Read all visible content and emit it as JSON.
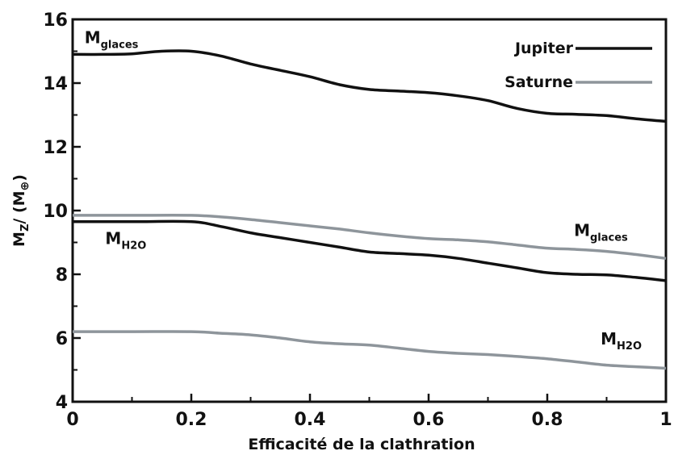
{
  "chart_data": {
    "type": "line",
    "xlabel": "Efficacité de la clathration",
    "ylabel": {
      "main": "M",
      "sub": "Z",
      "rest": "/ (M",
      "earth": "⊕",
      "close": ")"
    },
    "xlim": [
      0,
      1
    ],
    "ylim": [
      4,
      16
    ],
    "x_ticks": [
      "0",
      "0.2",
      "0.4",
      "0.6",
      "0.8",
      "1"
    ],
    "y_ticks": [
      "4",
      "6",
      "8",
      "10",
      "12",
      "14",
      "16"
    ],
    "grid": false,
    "legend_position": "top-right",
    "legend": [
      {
        "label": "Jupiter",
        "color": "#111111"
      },
      {
        "label": "Saturne",
        "color": "#8e959b"
      }
    ],
    "series": [
      {
        "name": "Jupiter",
        "quantity": "M_glaces",
        "color": "#111111",
        "points": [
          [
            0,
            14.9
          ],
          [
            0.05,
            14.9
          ],
          [
            0.1,
            14.92
          ],
          [
            0.15,
            15.0
          ],
          [
            0.2,
            15.0
          ],
          [
            0.25,
            14.85
          ],
          [
            0.3,
            14.6
          ],
          [
            0.35,
            14.4
          ],
          [
            0.4,
            14.2
          ],
          [
            0.45,
            13.95
          ],
          [
            0.5,
            13.8
          ],
          [
            0.55,
            13.75
          ],
          [
            0.6,
            13.7
          ],
          [
            0.65,
            13.6
          ],
          [
            0.7,
            13.45
          ],
          [
            0.75,
            13.2
          ],
          [
            0.8,
            13.05
          ],
          [
            0.85,
            13.02
          ],
          [
            0.9,
            12.98
          ],
          [
            0.95,
            12.88
          ],
          [
            1.0,
            12.8
          ]
        ]
      },
      {
        "name": "Jupiter",
        "quantity": "M_H2O",
        "color": "#111111",
        "points": [
          [
            0,
            9.65
          ],
          [
            0.1,
            9.65
          ],
          [
            0.2,
            9.65
          ],
          [
            0.25,
            9.5
          ],
          [
            0.3,
            9.3
          ],
          [
            0.35,
            9.15
          ],
          [
            0.4,
            9.0
          ],
          [
            0.45,
            8.85
          ],
          [
            0.5,
            8.7
          ],
          [
            0.55,
            8.65
          ],
          [
            0.6,
            8.6
          ],
          [
            0.65,
            8.5
          ],
          [
            0.7,
            8.35
          ],
          [
            0.75,
            8.2
          ],
          [
            0.8,
            8.05
          ],
          [
            0.85,
            8.0
          ],
          [
            0.9,
            7.98
          ],
          [
            0.95,
            7.9
          ],
          [
            1.0,
            7.8
          ]
        ]
      },
      {
        "name": "Saturne",
        "quantity": "M_glaces",
        "color": "#8e959b",
        "points": [
          [
            0,
            9.85
          ],
          [
            0.1,
            9.85
          ],
          [
            0.2,
            9.85
          ],
          [
            0.25,
            9.8
          ],
          [
            0.3,
            9.72
          ],
          [
            0.35,
            9.62
          ],
          [
            0.4,
            9.52
          ],
          [
            0.45,
            9.42
          ],
          [
            0.5,
            9.3
          ],
          [
            0.55,
            9.2
          ],
          [
            0.6,
            9.12
          ],
          [
            0.65,
            9.08
          ],
          [
            0.7,
            9.02
          ],
          [
            0.75,
            8.92
          ],
          [
            0.8,
            8.82
          ],
          [
            0.85,
            8.78
          ],
          [
            0.9,
            8.72
          ],
          [
            0.95,
            8.62
          ],
          [
            1.0,
            8.5
          ]
        ]
      },
      {
        "name": "Saturne",
        "quantity": "M_H2O",
        "color": "#8e959b",
        "points": [
          [
            0,
            6.2
          ],
          [
            0.1,
            6.2
          ],
          [
            0.2,
            6.2
          ],
          [
            0.25,
            6.15
          ],
          [
            0.3,
            6.1
          ],
          [
            0.35,
            6.0
          ],
          [
            0.4,
            5.88
          ],
          [
            0.45,
            5.82
          ],
          [
            0.5,
            5.78
          ],
          [
            0.55,
            5.68
          ],
          [
            0.6,
            5.58
          ],
          [
            0.65,
            5.52
          ],
          [
            0.7,
            5.48
          ],
          [
            0.75,
            5.42
          ],
          [
            0.8,
            5.35
          ],
          [
            0.85,
            5.25
          ],
          [
            0.9,
            5.15
          ],
          [
            0.95,
            5.1
          ],
          [
            1.0,
            5.05
          ]
        ]
      }
    ],
    "annotations": [
      {
        "main": "M",
        "sub": "glaces",
        "x": 0.02,
        "y": 15.25
      },
      {
        "main": "M",
        "sub": "H2O",
        "x": 0.055,
        "y": 8.95
      },
      {
        "main": "M",
        "sub": "glaces",
        "x": 0.845,
        "y": 9.2
      },
      {
        "main": "M",
        "sub": "H2O",
        "x": 0.89,
        "y": 5.8
      }
    ]
  }
}
